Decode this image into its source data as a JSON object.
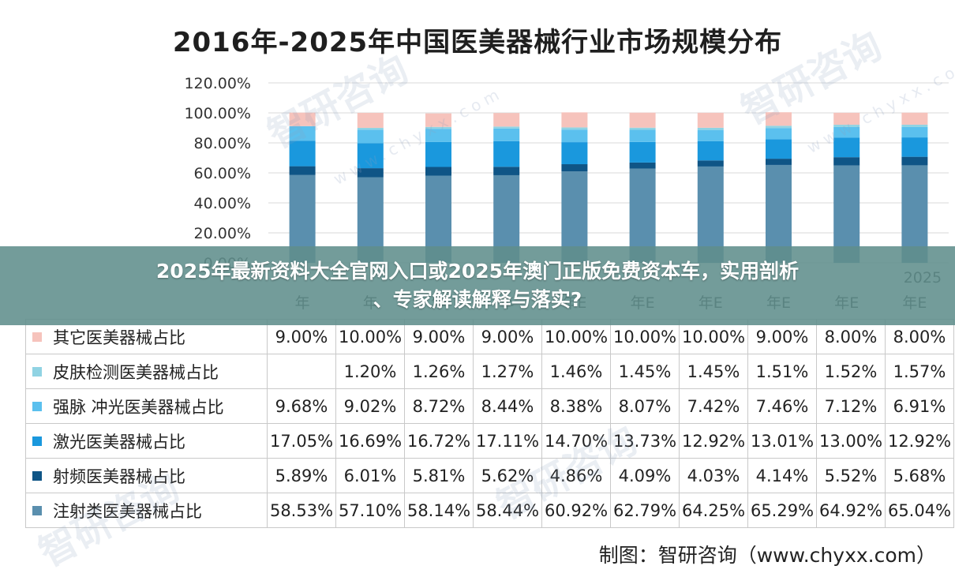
{
  "chart_data": {
    "type": "bar",
    "stacked": true,
    "title": "2016年-2025年中国医美器械行业市场规模分布",
    "ylim": [
      0,
      120
    ],
    "yticks": [
      "0.00%",
      "20.00%",
      "40.00%",
      "60.00%",
      "80.00%",
      "100.00%",
      "120.00%"
    ],
    "categories_partial": [
      "年",
      "年",
      "年",
      "年",
      "年E",
      "年E",
      "年E",
      "年E",
      "年E",
      "年E"
    ],
    "category_fragment_last": "2025",
    "series": [
      {
        "name": "注射类医美器械占比",
        "color": "#5a8fae",
        "values": [
          58.53,
          57.1,
          58.14,
          58.44,
          60.92,
          62.79,
          64.25,
          65.29,
          64.92,
          65.04
        ],
        "labels": [
          "58.53%",
          "57.10%",
          "58.14%",
          "58.44%",
          "60.92%",
          "62.79%",
          "64.25%",
          "65.29%",
          "64.92%",
          "65.04%"
        ]
      },
      {
        "name": "射频医美器械占比",
        "color": "#0f5586",
        "values": [
          5.89,
          6.01,
          5.81,
          5.62,
          4.86,
          4.09,
          4.03,
          4.14,
          5.52,
          5.68
        ],
        "labels": [
          "5.89%",
          "6.01%",
          "5.81%",
          "5.62%",
          "4.86%",
          "4.09%",
          "4.03%",
          "4.14%",
          "5.52%",
          "5.68%"
        ]
      },
      {
        "name": "激光医美器械占比",
        "color": "#1a98dd",
        "values": [
          17.05,
          16.69,
          16.72,
          17.11,
          14.7,
          13.73,
          12.92,
          13.01,
          13.0,
          12.92
        ],
        "labels": [
          "17.05%",
          "16.69%",
          "16.72%",
          "17.11%",
          "14.70%",
          "13.73%",
          "12.92%",
          "13.01%",
          "13.00%",
          "12.92%"
        ]
      },
      {
        "name": "强脉 冲光医美器械占比",
        "color": "#5bc0ee",
        "values": [
          9.68,
          9.02,
          8.72,
          8.44,
          8.38,
          8.07,
          7.42,
          7.46,
          7.12,
          6.91
        ],
        "labels": [
          "9.68%",
          "9.02%",
          "8.72%",
          "8.44%",
          "8.38%",
          "8.07%",
          "7.42%",
          "7.46%",
          "7.12%",
          "6.91%"
        ]
      },
      {
        "name": "皮肤检测医美器械占比",
        "color": "#90d3e3",
        "values": [
          0,
          1.2,
          1.26,
          1.27,
          1.46,
          1.45,
          1.45,
          1.51,
          1.52,
          1.57
        ],
        "labels": [
          "",
          "1.20%",
          "1.26%",
          "1.27%",
          "1.46%",
          "1.45%",
          "1.45%",
          "1.51%",
          "1.52%",
          "1.57%"
        ]
      },
      {
        "name": "其它医美器械占比",
        "color": "#f6c3bc",
        "values": [
          9.0,
          10.0,
          9.0,
          9.0,
          10.0,
          10.0,
          10.0,
          9.0,
          8.0,
          8.0
        ],
        "labels": [
          "9.00%",
          "10.00%",
          "9.00%",
          "9.00%",
          "10.00%",
          "10.00%",
          "10.00%",
          "9.00%",
          "8.00%",
          "8.00%"
        ]
      }
    ],
    "table_row_order": [
      5,
      4,
      3,
      2,
      1,
      0
    ],
    "grid": true,
    "legend": "table"
  },
  "credit": "制图：智研咨询（www.chyxx.com）",
  "watermark": {
    "brand": "智研咨询",
    "url": "www.chyxx.com"
  },
  "overlay": {
    "line1": "2025年最新资料大全官网入口或2025年澳门正版免费资本车，实用剖析",
    "line2": "、专家解读解释与落实?"
  }
}
